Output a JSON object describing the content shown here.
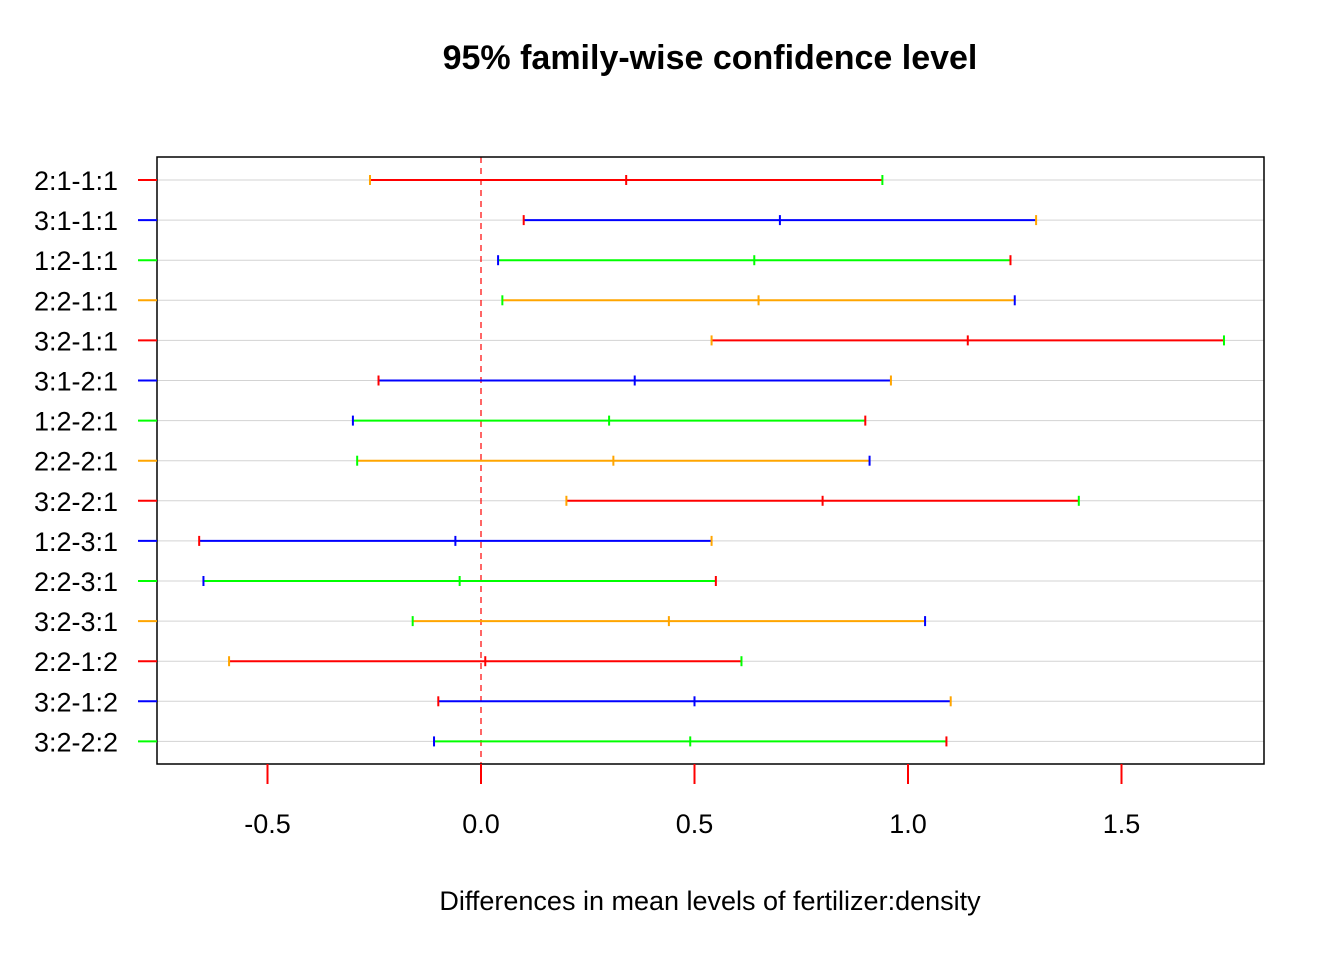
{
  "chart_data": {
    "type": "errorbar",
    "title": "95% family-wise confidence level",
    "xlabel": "Differences in mean levels of fertilizer:density",
    "ylabel": "",
    "xlim": [
      -0.8,
      1.8
    ],
    "xticks": [
      -0.5,
      0.0,
      0.5,
      1.0,
      1.5
    ],
    "xtick_labels": [
      "-0.5",
      "0.0",
      "0.5",
      "1.0",
      "1.5"
    ],
    "reference_line": 0,
    "grid": "horizontal",
    "colors": {
      "red": "#ff0000",
      "blue": "#0000ff",
      "green": "#00ff00",
      "orange": "#ffa500",
      "reference": "#ff0000",
      "grid": "#d3d3d3"
    },
    "comparisons": [
      {
        "label": "2:1-1:1",
        "lwr": -0.26,
        "diff": 0.34,
        "upr": 0.94,
        "line": "red",
        "lwr_tick": "orange",
        "diff_tick": "red",
        "upr_tick": "green"
      },
      {
        "label": "3:1-1:1",
        "lwr": 0.1,
        "diff": 0.7,
        "upr": 1.3,
        "line": "blue",
        "lwr_tick": "red",
        "diff_tick": "blue",
        "upr_tick": "orange"
      },
      {
        "label": "1:2-1:1",
        "lwr": 0.04,
        "diff": 0.64,
        "upr": 1.24,
        "line": "green",
        "lwr_tick": "blue",
        "diff_tick": "green",
        "upr_tick": "red"
      },
      {
        "label": "2:2-1:1",
        "lwr": 0.05,
        "diff": 0.65,
        "upr": 1.25,
        "line": "orange",
        "lwr_tick": "green",
        "diff_tick": "orange",
        "upr_tick": "blue"
      },
      {
        "label": "3:2-1:1",
        "lwr": 0.54,
        "diff": 1.14,
        "upr": 1.74,
        "line": "red",
        "lwr_tick": "orange",
        "diff_tick": "red",
        "upr_tick": "green"
      },
      {
        "label": "3:1-2:1",
        "lwr": -0.24,
        "diff": 0.36,
        "upr": 0.96,
        "line": "blue",
        "lwr_tick": "red",
        "diff_tick": "blue",
        "upr_tick": "orange"
      },
      {
        "label": "1:2-2:1",
        "lwr": -0.3,
        "diff": 0.3,
        "upr": 0.9,
        "line": "green",
        "lwr_tick": "blue",
        "diff_tick": "green",
        "upr_tick": "red"
      },
      {
        "label": "2:2-2:1",
        "lwr": -0.29,
        "diff": 0.31,
        "upr": 0.91,
        "line": "orange",
        "lwr_tick": "green",
        "diff_tick": "orange",
        "upr_tick": "blue"
      },
      {
        "label": "3:2-2:1",
        "lwr": 0.2,
        "diff": 0.8,
        "upr": 1.4,
        "line": "red",
        "lwr_tick": "orange",
        "diff_tick": "red",
        "upr_tick": "green"
      },
      {
        "label": "1:2-3:1",
        "lwr": -0.66,
        "diff": -0.06,
        "upr": 0.54,
        "line": "blue",
        "lwr_tick": "red",
        "diff_tick": "blue",
        "upr_tick": "orange"
      },
      {
        "label": "2:2-3:1",
        "lwr": -0.65,
        "diff": -0.05,
        "upr": 0.55,
        "line": "green",
        "lwr_tick": "blue",
        "diff_tick": "green",
        "upr_tick": "red"
      },
      {
        "label": "3:2-3:1",
        "lwr": -0.16,
        "diff": 0.44,
        "upr": 1.04,
        "line": "orange",
        "lwr_tick": "green",
        "diff_tick": "orange",
        "upr_tick": "blue"
      },
      {
        "label": "2:2-1:2",
        "lwr": -0.59,
        "diff": 0.01,
        "upr": 0.61,
        "line": "red",
        "lwr_tick": "orange",
        "diff_tick": "red",
        "upr_tick": "green"
      },
      {
        "label": "3:2-1:2",
        "lwr": -0.1,
        "diff": 0.5,
        "upr": 1.1,
        "line": "blue",
        "lwr_tick": "red",
        "diff_tick": "blue",
        "upr_tick": "orange"
      },
      {
        "label": "3:2-2:2",
        "lwr": -0.11,
        "diff": 0.49,
        "upr": 1.09,
        "line": "green",
        "lwr_tick": "blue",
        "diff_tick": "green",
        "upr_tick": "red"
      }
    ]
  }
}
